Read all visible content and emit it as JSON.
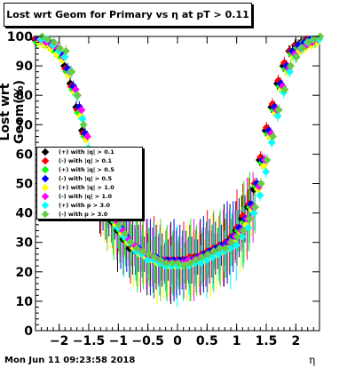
{
  "page": {
    "title": "Lost wrt Geom for Primary vs   η at pT > 0.11",
    "ylabel": "Lost wrt Geom(%)",
    "xlabel": "η",
    "timestamp": "Mon Jun 11 09:23:58 2018"
  },
  "chart_data": {
    "type": "scatter",
    "title": "Lost wrt Geom for Primary vs   η at pT > 0.11",
    "xlabel": "η",
    "ylabel": "Lost wrt Geom(%)",
    "xlim": [
      -2.4,
      2.4
    ],
    "ylim": [
      0,
      100
    ],
    "x_ticks": [
      "−2",
      "−1.5",
      "−1",
      "−0.5",
      "0",
      "0.5",
      "1",
      "1.5",
      "2"
    ],
    "y_ticks": [
      "0",
      "10",
      "20",
      "30",
      "40",
      "50",
      "60",
      "70",
      "80",
      "90",
      "100"
    ],
    "grid": false,
    "legend_position": "middle-left",
    "x": [
      -2.35,
      -2.25,
      -2.15,
      -2.05,
      -1.95,
      -1.85,
      -1.75,
      -1.65,
      -1.55,
      -1.45,
      -1.35,
      -1.25,
      -1.15,
      -1.05,
      -0.95,
      -0.85,
      -0.75,
      -0.65,
      -0.55,
      -0.45,
      -0.35,
      -0.25,
      -0.15,
      -0.05,
      0.05,
      0.15,
      0.25,
      0.35,
      0.45,
      0.55,
      0.65,
      0.75,
      0.85,
      0.95,
      1.05,
      1.15,
      1.25,
      1.35,
      1.45,
      1.55,
      1.65,
      1.75,
      1.85,
      1.95,
      2.05,
      2.15,
      2.25,
      2.35
    ],
    "series": [
      {
        "name": "(+) with |q| > 0.1",
        "color": "#000000",
        "values": [
          99,
          99,
          98,
          97,
          95,
          90,
          84,
          76,
          68,
          58,
          48,
          44,
          40,
          37,
          34,
          31,
          28,
          27,
          26,
          25,
          24,
          24,
          23,
          23,
          23,
          24,
          24,
          25,
          25,
          26,
          27,
          28,
          29,
          31,
          34,
          38,
          42,
          48,
          58,
          68,
          76,
          84,
          90,
          95,
          97,
          98,
          99,
          99
        ]
      },
      {
        "name": "(-) with |q| > 0.1",
        "color": "#ff0000",
        "values": [
          99,
          99,
          98,
          96,
          94,
          89,
          83,
          75,
          67,
          57,
          50,
          46,
          42,
          38,
          35,
          32,
          29,
          28,
          27,
          26,
          25,
          24,
          24,
          24,
          24,
          24,
          25,
          25,
          26,
          27,
          28,
          29,
          30,
          32,
          35,
          39,
          43,
          50,
          59,
          69,
          77,
          85,
          91,
          95,
          97,
          98,
          99,
          99
        ]
      },
      {
        "name": "(+) with |q| > 0.5",
        "color": "#00ff00",
        "values": [
          98,
          98,
          97,
          95,
          93,
          88,
          82,
          74,
          66,
          56,
          49,
          45,
          41,
          37,
          34,
          31,
          29,
          27,
          26,
          25,
          24,
          23,
          23,
          23,
          23,
          23,
          24,
          24,
          25,
          26,
          27,
          28,
          29,
          31,
          34,
          37,
          42,
          49,
          57,
          67,
          75,
          83,
          89,
          94,
          96,
          98,
          98,
          98
        ]
      },
      {
        "name": "(-) with |q| > 0.5",
        "color": "#0000ff",
        "values": [
          99,
          99,
          98,
          96,
          94,
          89,
          83,
          76,
          67,
          57,
          50,
          45,
          41,
          38,
          35,
          32,
          29,
          28,
          26,
          25,
          25,
          24,
          24,
          24,
          24,
          24,
          24,
          25,
          26,
          27,
          28,
          29,
          30,
          32,
          35,
          38,
          43,
          50,
          58,
          68,
          76,
          84,
          90,
          95,
          97,
          98,
          99,
          99
        ]
      },
      {
        "name": "(+) with |q| > 1.0",
        "color": "#ffff00",
        "values": [
          98,
          97,
          96,
          94,
          92,
          87,
          81,
          73,
          65,
          55,
          48,
          44,
          40,
          36,
          33,
          30,
          28,
          26,
          25,
          24,
          23,
          23,
          22,
          22,
          22,
          23,
          23,
          24,
          24,
          25,
          26,
          27,
          28,
          30,
          33,
          36,
          41,
          48,
          56,
          66,
          74,
          82,
          88,
          93,
          95,
          96,
          97,
          98
        ]
      },
      {
        "name": "(-) with |q| > 1.0",
        "color": "#ff00ff",
        "values": [
          99,
          98,
          97,
          96,
          93,
          88,
          82,
          75,
          66,
          56,
          49,
          45,
          41,
          37,
          34,
          31,
          29,
          27,
          26,
          25,
          24,
          23,
          23,
          23,
          23,
          24,
          24,
          25,
          25,
          26,
          27,
          28,
          30,
          32,
          34,
          38,
          42,
          49,
          58,
          67,
          75,
          83,
          89,
          94,
          96,
          97,
          98,
          99
        ]
      },
      {
        "name": "(+) with p > 3.0",
        "color": "#00ffff",
        "values": [
          99,
          99,
          97,
          95,
          93,
          88,
          80,
          72,
          62,
          52,
          46,
          42,
          38,
          35,
          32,
          30,
          27,
          26,
          24,
          24,
          23,
          22,
          22,
          22,
          22,
          22,
          23,
          23,
          24,
          25,
          26,
          27,
          28,
          29,
          32,
          35,
          40,
          46,
          54,
          64,
          73,
          81,
          88,
          93,
          96,
          98,
          99,
          99
        ]
      },
      {
        "name": "(-) with p > 3.0",
        "color": "#66cc44",
        "values": [
          100,
          99,
          98,
          96,
          95,
          88,
          80,
          70,
          60,
          48,
          44,
          41,
          38,
          36,
          33,
          30,
          28,
          27,
          26,
          25,
          24,
          23,
          23,
          23,
          22,
          23,
          24,
          25,
          26,
          27,
          28,
          28,
          30,
          32,
          34,
          38,
          42,
          50,
          58,
          66,
          75,
          82,
          90,
          93,
          96,
          98,
          99,
          100
        ]
      }
    ]
  }
}
